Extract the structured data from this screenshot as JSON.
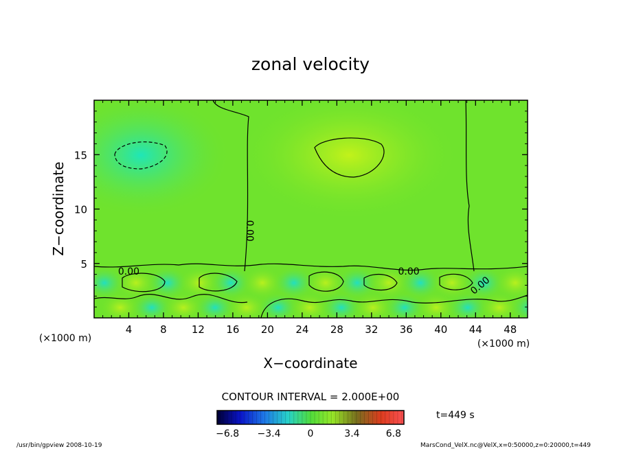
{
  "chart_data": {
    "type": "heatmap",
    "title": "zonal velocity",
    "xlabel": "X−coordinate",
    "ylabel": "Z−coordinate",
    "x_unit_left": "(×1000 m)",
    "x_unit_right": "(×1000 m)",
    "xlim": [
      0,
      50
    ],
    "ylim": [
      0,
      20
    ],
    "x_ticks": [
      4,
      8,
      12,
      16,
      20,
      24,
      28,
      32,
      36,
      40,
      44,
      48
    ],
    "y_ticks": [
      5,
      10,
      15
    ],
    "contour_interval_text": "CONTOUR INTERVAL = 2.000E+00",
    "contour_labels": [
      {
        "text": "0.00",
        "x": 4.0,
        "y": 4.3
      },
      {
        "text": "0.00",
        "x": 18.0,
        "y": 8.0
      },
      {
        "text": "0.00",
        "x": 36.3,
        "y": 4.3
      },
      {
        "text": "0.00",
        "x": 44.5,
        "y": 3.0
      }
    ],
    "colorbar": {
      "min": -7.65,
      "max": 7.65,
      "tick_labels": [
        "−6.8",
        "−3.4",
        "0",
        "3.4",
        "6.8"
      ],
      "tick_values": [
        -6.8,
        -3.4,
        0,
        3.4,
        6.8
      ]
    },
    "time_label": "t=449 s",
    "footer_left": "/usr/bin/gpview   2008-10-19",
    "footer_right": "MarsCond_VelX.nc@VelX,x=0:50000,z=0:20000,t=449",
    "grid": false,
    "colors": {
      "field_base": "#6fe32d",
      "positive": "#b6f21c",
      "negative": "#2fe6a6"
    }
  }
}
